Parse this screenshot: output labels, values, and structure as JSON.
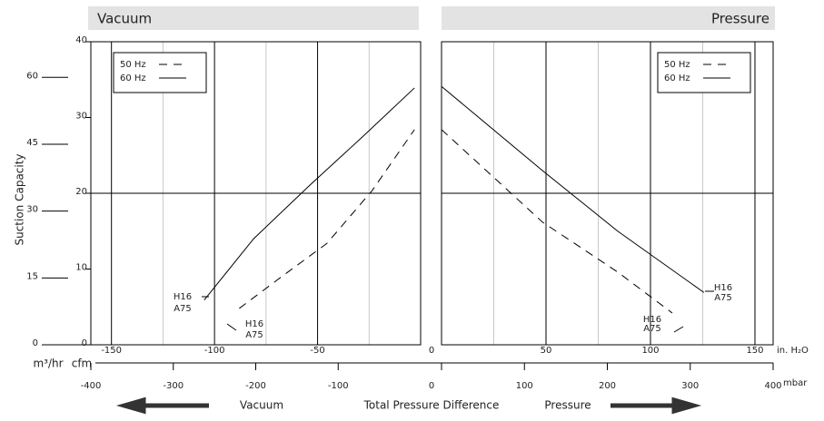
{
  "labels": {
    "y_axis": "Suction Capacity",
    "y2_unit": "m³/hr",
    "y_unit": "cfm",
    "x_unit": "in. H₂O",
    "x2_unit": "mbar",
    "left_arrow": "Vacuum",
    "center": "Total Pressure Difference",
    "right_arrow": "Pressure"
  },
  "chart_data": [
    {
      "type": "line",
      "title": "Vacuum",
      "title_align": "left",
      "xlim": [
        -160,
        0
      ],
      "xticks": [
        -150,
        -100,
        -50
      ],
      "x2lim": [
        -400,
        0
      ],
      "x2ticks": [
        -400,
        -300,
        -200,
        -100
      ],
      "ylim": [
        0,
        40
      ],
      "yticks": [
        0,
        10,
        20,
        30,
        40
      ],
      "ygrid": [
        20
      ],
      "y2lim": [
        0,
        68
      ],
      "y2ticks": [
        0,
        15,
        30,
        45,
        60
      ],
      "legend": "top-left",
      "annotations": [
        "H16",
        "A75",
        "H16",
        "A75"
      ],
      "series": [
        {
          "name": "50 Hz",
          "color": "#000000",
          "dash": true,
          "x": [
            -88,
            -67.4,
            -45.4,
            -23.4,
            -3
          ],
          "values": [
            4.8,
            9,
            13.4,
            20.4,
            28.4
          ]
        },
        {
          "name": "60 Hz",
          "color": "#000000",
          "dash": false,
          "x": [
            -105,
            -81,
            -54,
            -28,
            -3
          ],
          "values": [
            5.9,
            14,
            21,
            27.5,
            33.9
          ]
        }
      ]
    },
    {
      "type": "line",
      "title": "Pressure",
      "title_align": "right",
      "xlim": [
        0,
        158.7
      ],
      "xticks": [
        0,
        50,
        100,
        150
      ],
      "x2lim": [
        0,
        400
      ],
      "x2ticks": [
        0,
        100,
        200,
        300,
        400
      ],
      "ylim": [
        0,
        40
      ],
      "ygrid": [
        20
      ],
      "legend": "top-right",
      "annotations": [
        "H16",
        "A75",
        "H16",
        "A75"
      ],
      "series": [
        {
          "name": "50 Hz",
          "color": "#000000",
          "dash": true,
          "x": [
            0,
            48.3,
            84.3,
            110.4
          ],
          "values": [
            28.4,
            16.2,
            9.6,
            4.2
          ]
        },
        {
          "name": "60 Hz",
          "color": "#000000",
          "dash": false,
          "x": [
            0,
            48.3,
            84.3,
            125.6
          ],
          "values": [
            34.1,
            23,
            15,
            6.9
          ]
        }
      ]
    }
  ]
}
